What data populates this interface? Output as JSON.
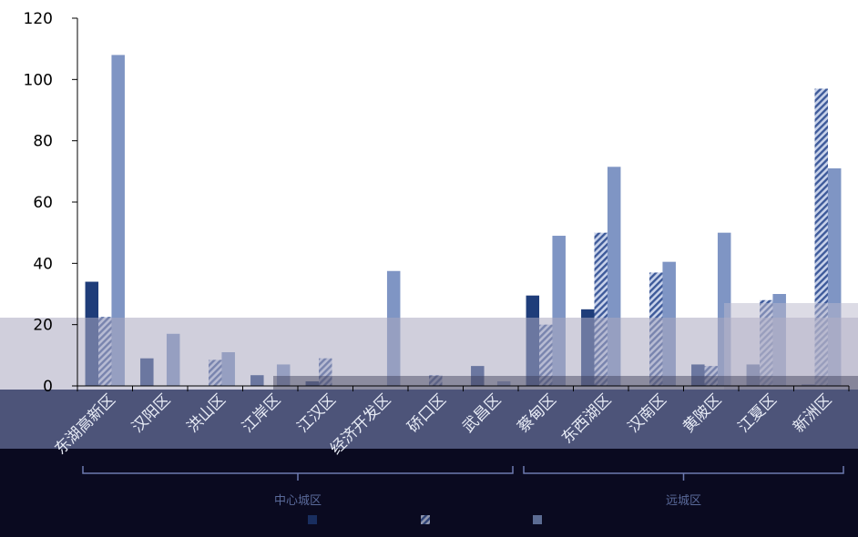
{
  "chart_data": {
    "type": "bar",
    "title": "",
    "xlabel": "",
    "ylabel": "",
    "ylim": [
      0,
      120
    ],
    "yticks": [
      0,
      20,
      40,
      60,
      80,
      100,
      120
    ],
    "categories": [
      "东湖高新区",
      "汉阳区",
      "洪山区",
      "江岸区",
      "江汉区",
      "经济开发区",
      "硚口区",
      "武昌区",
      "蔡甸区",
      "东西湖区",
      "汉南区",
      "黄陂区",
      "江夏区",
      "新洲区"
    ],
    "groups": [
      {
        "label": "中心城区",
        "from": 0,
        "to": 7
      },
      {
        "label": "远城区",
        "from": 8,
        "to": 13
      }
    ],
    "series": [
      {
        "values": [
          34,
          9,
          0,
          3.5,
          1.5,
          0,
          0,
          6.5,
          29.5,
          25,
          0,
          7,
          7,
          0.5
        ],
        "color": "#1f3d7a",
        "pattern": "solid"
      },
      {
        "values": [
          22.5,
          0,
          8.5,
          0,
          9,
          0,
          3.5,
          0,
          20,
          50,
          37,
          6.5,
          28,
          97
        ],
        "color": "#3e5a9a",
        "pattern": "hatch"
      },
      {
        "values": [
          108,
          17,
          11,
          7,
          0,
          37.5,
          0,
          1.5,
          49,
          71.5,
          40.5,
          50,
          30,
          71
        ],
        "color": "#7f95c4",
        "pattern": "solid"
      }
    ],
    "legend": {
      "placement": "bottom"
    }
  }
}
